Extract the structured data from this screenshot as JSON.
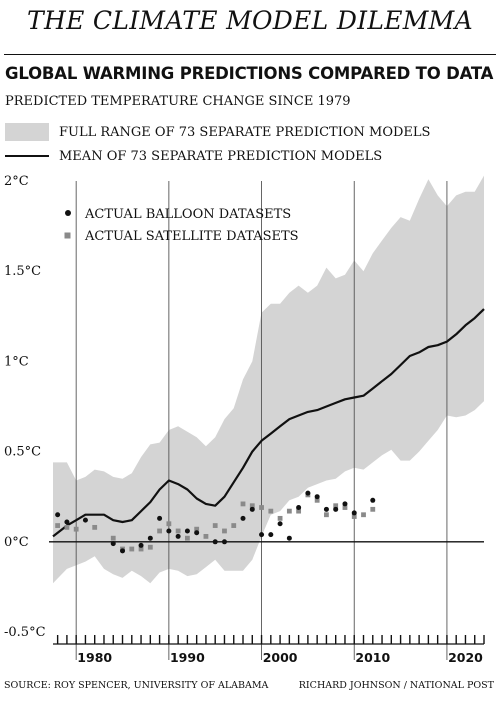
{
  "title": "THE CLIMATE MODEL DILEMMA",
  "subtitle": "GLOBAL WARMING PREDICTIONS COMPARED TO DATA",
  "ylabel": "PREDICTED TEMPERATURE CHANGE SINCE 1979",
  "legend": {
    "range": "FULL RANGE OF 73 SEPARATE PREDICTION MODELS",
    "mean": "MEAN OF 73 SEPARATE PREDICTION MODELS",
    "balloon": "ACTUAL BALLOON DATASETS",
    "satellite": "ACTUAL SATELLITE DATASETS"
  },
  "footer": {
    "source": "SOURCE: ROY SPENCER, UNIVERSITY OF ALABAMA",
    "credit": "RICHARD JOHNSON / NATIONAL POST"
  },
  "colors": {
    "range": "#d4d4d4",
    "mean": "#111111",
    "balloon": "#111111",
    "satellite": "#8a8a8a"
  },
  "chart_data": {
    "type": "line",
    "xlim": [
      1975.5,
      2022
    ],
    "ylim": [
      -0.5,
      2
    ],
    "ytick_values": [
      -0.5,
      0,
      0.5,
      1,
      1.5,
      2
    ],
    "ytick_labels": [
      "-0.5°C",
      "0°C",
      "0.5°C",
      "1°C",
      "1.5°C",
      "2°C"
    ],
    "xtick_values": [
      1980,
      1990,
      2000,
      2010,
      2020
    ],
    "xtick_labels": [
      "1980",
      "1990",
      "2000",
      "2010",
      "2020"
    ],
    "vertical_lines": [
      1978,
      1988,
      1998,
      2008,
      2018
    ],
    "grid": false,
    "legend_position": "top-left",
    "series": [
      {
        "name": "FULL RANGE OF 73 SEPARATE PREDICTION MODELS",
        "kind": "band",
        "x": [
          1975.5,
          1977,
          1978,
          1979,
          1980,
          1981,
          1982,
          1983,
          1984,
          1985,
          1986,
          1987,
          1988,
          1989,
          1990,
          1991,
          1992,
          1993,
          1994,
          1995,
          1996,
          1997,
          1998,
          1999,
          2000,
          2001,
          2002,
          2003,
          2004,
          2005,
          2006,
          2007,
          2008,
          2009,
          2010,
          2011,
          2012,
          2013,
          2014,
          2015,
          2016,
          2017,
          2018,
          2019,
          2020,
          2021,
          2022
        ],
        "upper": [
          0.44,
          0.44,
          0.34,
          0.36,
          0.4,
          0.39,
          0.36,
          0.35,
          0.38,
          0.47,
          0.54,
          0.55,
          0.62,
          0.64,
          0.61,
          0.58,
          0.53,
          0.58,
          0.68,
          0.74,
          0.9,
          1.0,
          1.27,
          1.32,
          1.32,
          1.38,
          1.42,
          1.38,
          1.42,
          1.52,
          1.46,
          1.48,
          1.56,
          1.5,
          1.6,
          1.67,
          1.74,
          1.8,
          1.78,
          1.9,
          2.01,
          1.92,
          1.86,
          1.92,
          1.94,
          1.94,
          2.03
        ],
        "lower": [
          -0.23,
          -0.15,
          -0.13,
          -0.11,
          -0.08,
          -0.15,
          -0.18,
          -0.2,
          -0.16,
          -0.19,
          -0.23,
          -0.17,
          -0.15,
          -0.16,
          -0.19,
          -0.18,
          -0.14,
          -0.1,
          -0.16,
          -0.16,
          -0.16,
          -0.1,
          0.03,
          0.15,
          0.17,
          0.23,
          0.25,
          0.3,
          0.32,
          0.34,
          0.35,
          0.39,
          0.41,
          0.4,
          0.44,
          0.48,
          0.51,
          0.45,
          0.45,
          0.5,
          0.56,
          0.62,
          0.7,
          0.69,
          0.7,
          0.73,
          0.78
        ]
      },
      {
        "name": "MEAN OF 73 SEPARATE PREDICTION MODELS",
        "kind": "line",
        "x": [
          1975.5,
          1977,
          1978,
          1979,
          1980,
          1981,
          1982,
          1983,
          1984,
          1985,
          1986,
          1987,
          1988,
          1989,
          1990,
          1991,
          1992,
          1993,
          1994,
          1995,
          1996,
          1997,
          1998,
          1999,
          2000,
          2001,
          2002,
          2003,
          2004,
          2005,
          2006,
          2007,
          2008,
          2009,
          2010,
          2011,
          2012,
          2013,
          2014,
          2015,
          2016,
          2017,
          2018,
          2019,
          2020,
          2021,
          2022
        ],
        "y": [
          0.03,
          0.09,
          0.12,
          0.15,
          0.15,
          0.15,
          0.12,
          0.11,
          0.12,
          0.17,
          0.22,
          0.29,
          0.34,
          0.32,
          0.29,
          0.24,
          0.21,
          0.2,
          0.25,
          0.33,
          0.41,
          0.5,
          0.56,
          0.6,
          0.64,
          0.68,
          0.7,
          0.72,
          0.73,
          0.75,
          0.77,
          0.79,
          0.8,
          0.81,
          0.85,
          0.89,
          0.93,
          0.98,
          1.03,
          1.05,
          1.08,
          1.09,
          1.11,
          1.15,
          1.2,
          1.24,
          1.29
        ]
      },
      {
        "name": "ACTUAL BALLOON DATASETS",
        "kind": "scatter",
        "x": [
          1976,
          1977,
          1979,
          1982,
          1983,
          1985,
          1986,
          1987,
          1988,
          1989,
          1990,
          1991,
          1993,
          1994,
          1996,
          1997,
          1998,
          1999,
          2000,
          2001,
          2002,
          2003,
          2004,
          2005,
          2006,
          2007,
          2008,
          2010
        ],
        "y": [
          0.15,
          0.11,
          0.12,
          -0.01,
          -0.05,
          -0.02,
          0.02,
          0.13,
          0.06,
          0.03,
          0.06,
          0.05,
          0.0,
          0.0,
          0.13,
          0.18,
          0.04,
          0.04,
          0.1,
          0.02,
          0.19,
          0.27,
          0.25,
          0.18,
          0.18,
          0.21,
          0.16,
          0.23
        ]
      },
      {
        "name": "ACTUAL SATELLITE DATASETS",
        "kind": "scatter",
        "x": [
          1976,
          1977,
          1978,
          1980,
          1982,
          1983,
          1984,
          1985,
          1986,
          1987,
          1988,
          1989,
          1990,
          1991,
          1992,
          1993,
          1994,
          1995,
          1996,
          1997,
          1998,
          1999,
          2000,
          2001,
          2002,
          2003,
          2004,
          2005,
          2006,
          2007,
          2008,
          2009,
          2010
        ],
        "y": [
          0.09,
          0.08,
          0.07,
          0.08,
          0.02,
          -0.04,
          -0.04,
          -0.04,
          -0.03,
          0.06,
          0.1,
          0.06,
          0.02,
          0.07,
          0.03,
          0.09,
          0.06,
          0.09,
          0.21,
          0.2,
          0.19,
          0.17,
          0.13,
          0.17,
          0.17,
          0.26,
          0.23,
          0.15,
          0.2,
          0.19,
          0.14,
          0.15,
          0.18
        ]
      }
    ]
  }
}
